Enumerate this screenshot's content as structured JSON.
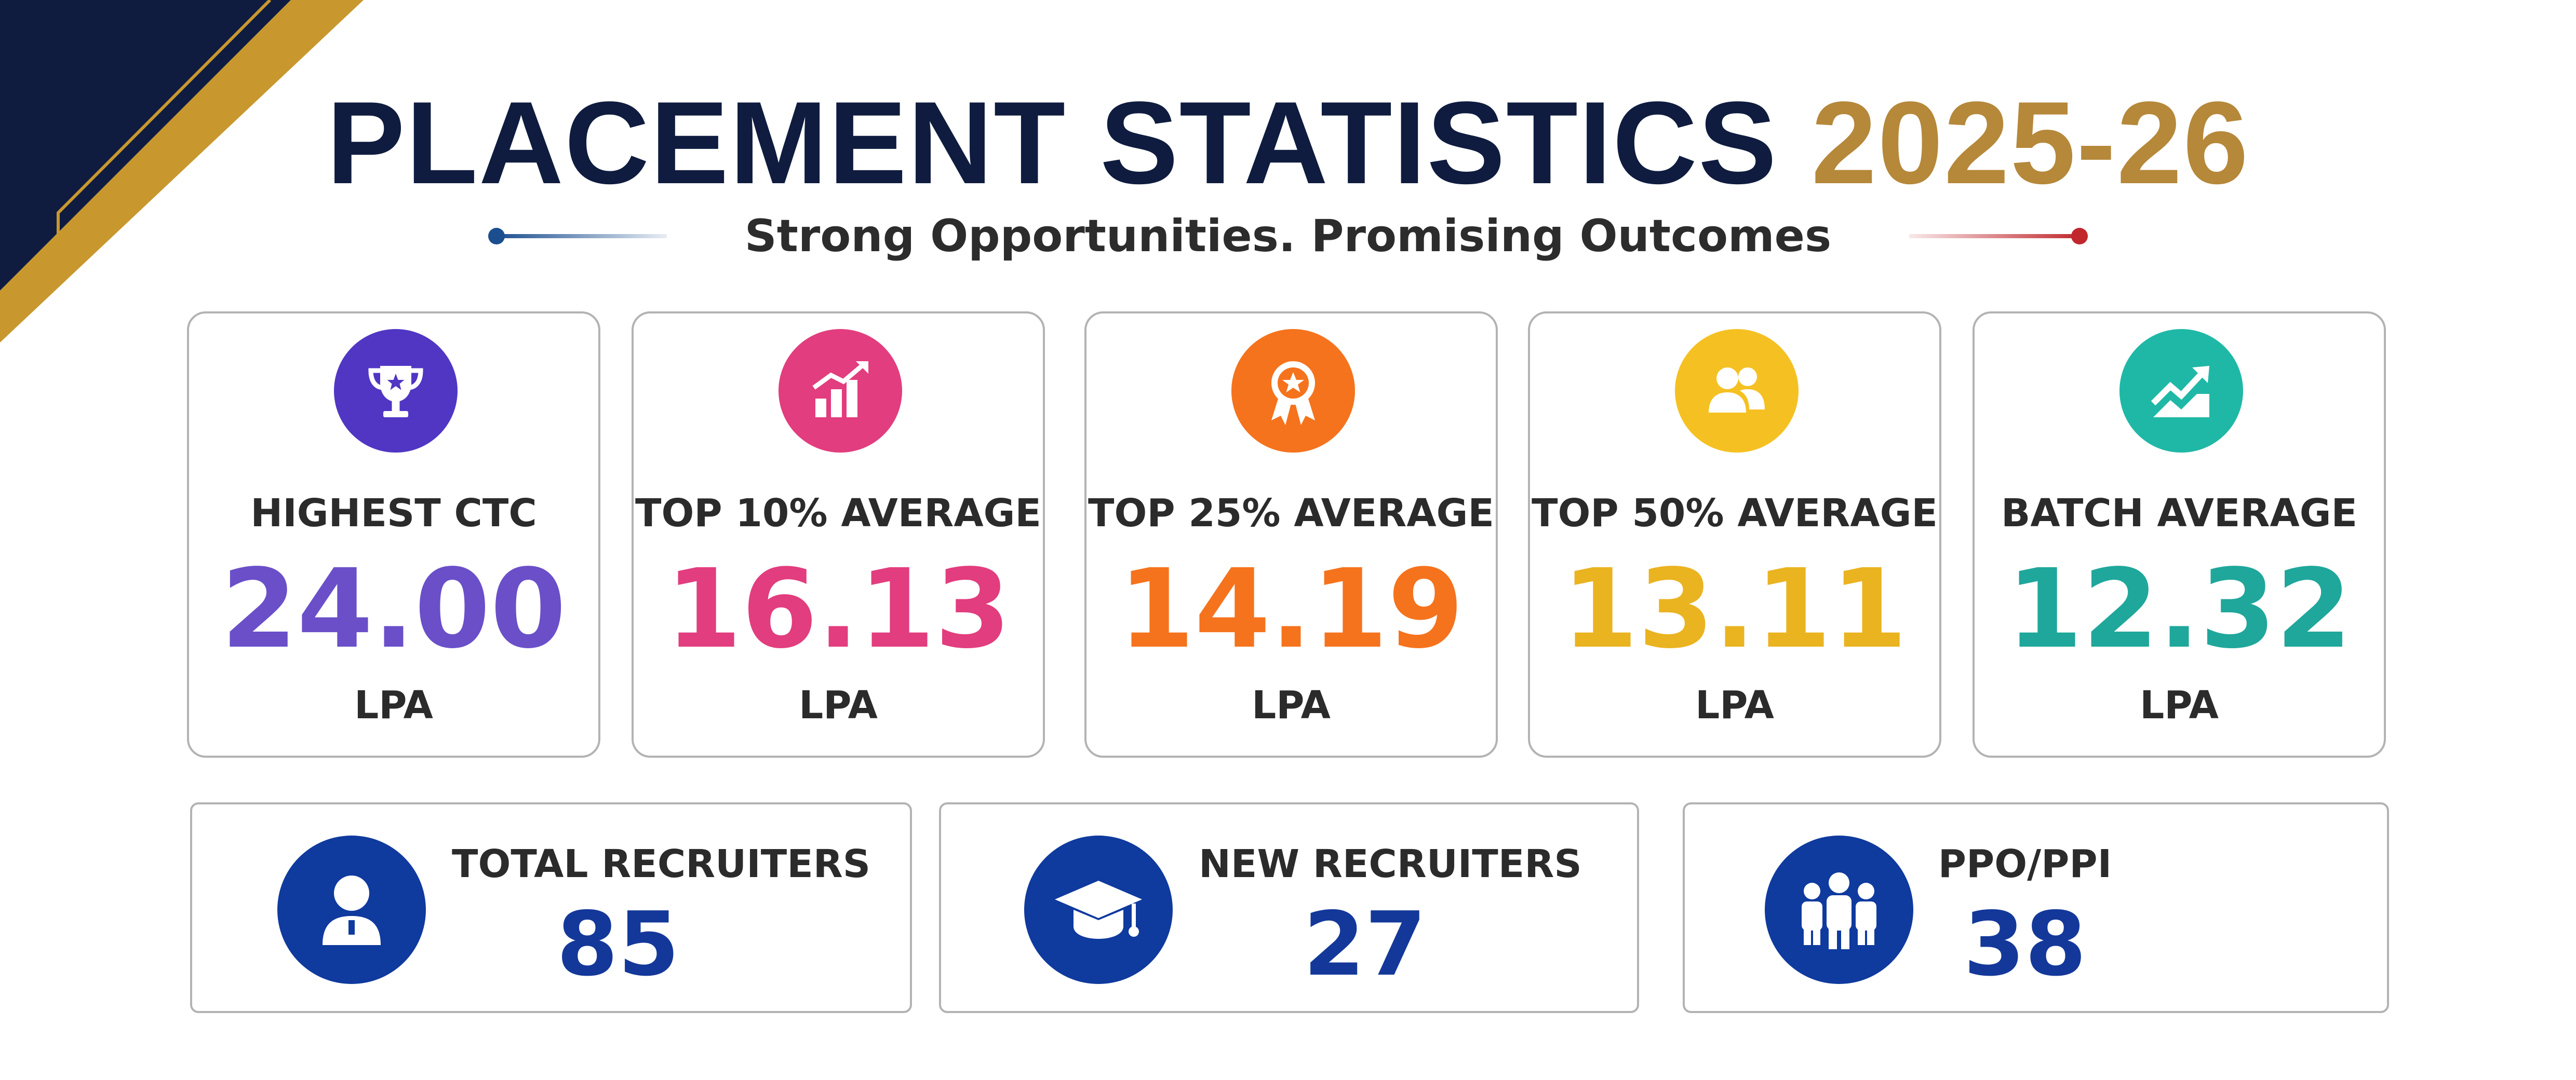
{
  "header": {
    "title_main": "PLACEMENT STATISTICS",
    "title_year": "2025-26",
    "subtitle": "Strong Opportunities. Promising Outcomes"
  },
  "stats": [
    {
      "label": "HIGHEST CTC",
      "value": "24.00",
      "unit": "LPA",
      "color": "#6a4fc9",
      "icon": "trophy-icon"
    },
    {
      "label": "TOP 10% AVERAGE",
      "value": "16.13",
      "unit": "LPA",
      "color": "#e23d7e",
      "icon": "growth-chart-icon"
    },
    {
      "label": "TOP 25% AVERAGE",
      "value": "14.19",
      "unit": "LPA",
      "color": "#f5731d",
      "icon": "award-badge-icon"
    },
    {
      "label": "TOP 50% AVERAGE",
      "value": "13.11",
      "unit": "LPA",
      "color": "#eab320",
      "icon": "group-icon"
    },
    {
      "label": "BATCH AVERAGE",
      "value": "12.32",
      "unit": "LPA",
      "color": "#1fa79b",
      "icon": "trend-up-icon"
    }
  ],
  "recruiters": [
    {
      "label": "TOTAL RECRUITERS",
      "value": "85",
      "icon": "person-icon"
    },
    {
      "label": "NEW RECRUITERS",
      "value": "27",
      "icon": "graduation-cap-icon"
    },
    {
      "label": "PPO/PPI",
      "value": "38",
      "icon": "team-icon"
    }
  ],
  "colors": {
    "navy": "#0f1c3f",
    "gold": "#b5883a",
    "recruiter_blue": "#0f3a9e",
    "recruiter_value": "#14389a"
  }
}
